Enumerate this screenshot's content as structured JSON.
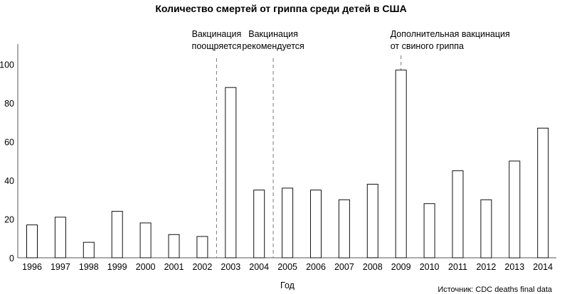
{
  "chart_data": {
    "type": "bar",
    "title": "Количество смертей от гриппа среди детей в США",
    "xlabel": "Год",
    "ylabel": "",
    "source": "Источник: CDC deaths final data",
    "categories": [
      "1996",
      "1997",
      "1998",
      "1999",
      "2000",
      "2001",
      "2002",
      "2003",
      "2004",
      "2005",
      "2006",
      "2007",
      "2008",
      "2009",
      "2010",
      "2011",
      "2012",
      "2013",
      "2014"
    ],
    "values": [
      17,
      21,
      8,
      24,
      18,
      12,
      11,
      88,
      35,
      36,
      35,
      30,
      38,
      97,
      28,
      45,
      30,
      50,
      67
    ],
    "yticks": [
      0,
      20,
      40,
      60,
      80,
      100
    ],
    "ylim": [
      0,
      110
    ],
    "grid": false,
    "annotations": [
      {
        "position_between": [
          "2002",
          "2003"
        ],
        "lines": [
          "Вакцинация",
          "поощряется"
        ]
      },
      {
        "position_between": [
          "2004",
          "2005"
        ],
        "lines": [
          "Вакцинация",
          "рекомендуется"
        ]
      },
      {
        "position_at": "2009",
        "lines": [
          "Дополнительная вакцинация",
          "от свиного гриппа"
        ]
      }
    ]
  }
}
